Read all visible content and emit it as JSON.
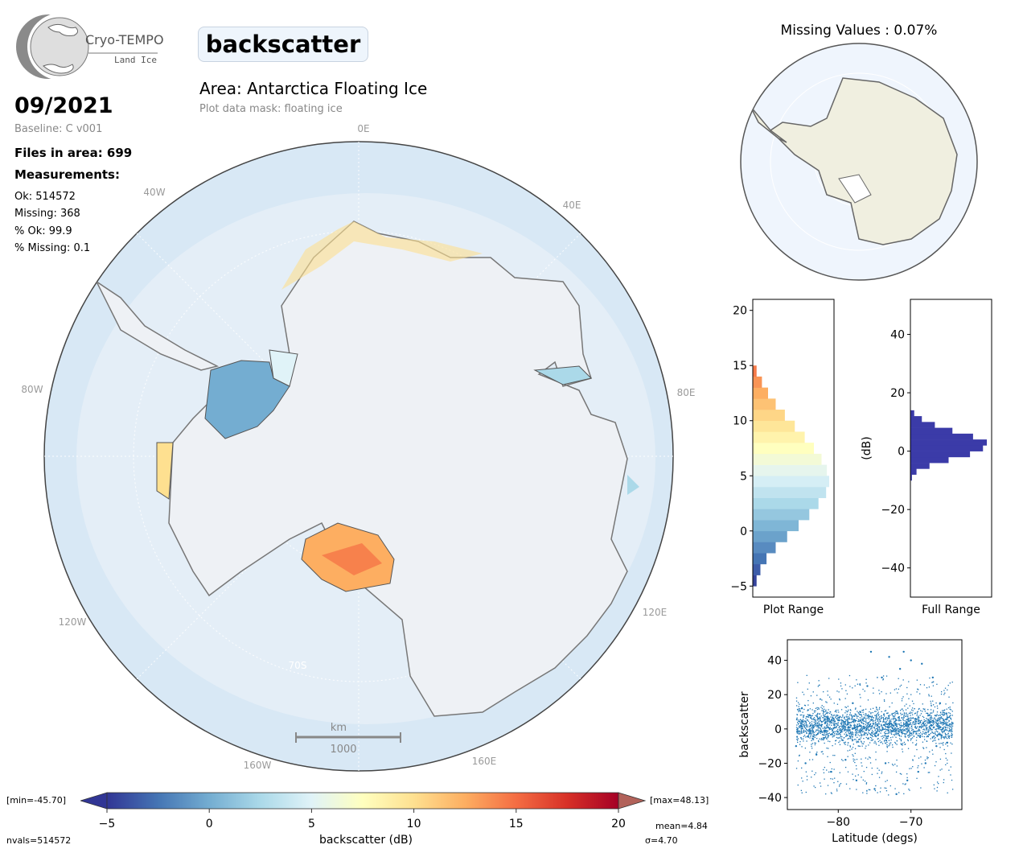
{
  "logo": {
    "name": "Cryo-TEMPO",
    "subtitle": "Land Ice"
  },
  "header": {
    "parameter": "backscatter",
    "area_title": "Area: Antarctica Floating Ice",
    "mask_note": "Plot data mask: floating ice",
    "date": "09/2021",
    "baseline": "Baseline: C v001",
    "files": "Files in area: 699",
    "measurements_label": "Measurements:",
    "ok": "Ok: 514572",
    "missing": "Missing: 368",
    "pct_ok": "% Ok: 99.9",
    "pct_missing": "% Missing: 0.1"
  },
  "map": {
    "lon_labels": [
      "0E",
      "40E",
      "80E",
      "120E",
      "160E",
      "160W",
      "120W",
      "80W",
      "40W"
    ],
    "lat_label": "70S",
    "scale_unit": "km",
    "scale_value": "1000"
  },
  "missing_map": {
    "title": "Missing Values : 0.07%"
  },
  "colorbar": {
    "min_label": "[min=-45.70]",
    "max_label": "[max=48.13]",
    "ticks": [
      "−5",
      "0",
      "5",
      "10",
      "15",
      "20"
    ],
    "label": "backscatter (dB)",
    "nvals": "nvals=514572",
    "mean": "mean=4.84",
    "sigma": "σ=4.70",
    "colors": [
      "#313695",
      "#4575b4",
      "#74add1",
      "#abd9e9",
      "#e0f3f8",
      "#ffffbf",
      "#fee090",
      "#fdae61",
      "#f46d43",
      "#d73027",
      "#a50026"
    ]
  },
  "chart_data": [
    {
      "type": "bar",
      "orientation": "horizontal",
      "xlabel": "Plot Range",
      "ylim": [
        -6,
        21
      ],
      "y_ticks": [
        "−5",
        "0",
        "5",
        "10",
        "15",
        "20"
      ],
      "bins": [
        -5,
        -4,
        -3,
        -2,
        -1,
        0,
        1,
        2,
        3,
        4,
        5,
        6,
        7,
        8,
        9,
        10,
        11,
        12,
        13,
        14
      ],
      "values": [
        0.05,
        0.1,
        0.18,
        0.3,
        0.45,
        0.6,
        0.74,
        0.86,
        0.96,
        1.0,
        0.97,
        0.9,
        0.8,
        0.68,
        0.55,
        0.42,
        0.3,
        0.2,
        0.12,
        0.05
      ]
    },
    {
      "type": "bar",
      "orientation": "horizontal",
      "xlabel": "Full Range",
      "ylabel": "(dB)",
      "ylim": [
        -50,
        52
      ],
      "y_ticks": [
        "−40",
        "−20",
        "0",
        "20",
        "40"
      ],
      "bins": [
        -10,
        -8,
        -6,
        -4,
        -2,
        0,
        2,
        4,
        6,
        8,
        10,
        12
      ],
      "values": [
        0.02,
        0.08,
        0.25,
        0.5,
        0.78,
        0.95,
        1.0,
        0.82,
        0.55,
        0.32,
        0.15,
        0.05
      ],
      "color": "#3b3ba8"
    },
    {
      "type": "scatter",
      "xlabel": "Latitude (degs)",
      "ylabel": "backscatter",
      "xlim": [
        -87,
        -63
      ],
      "ylim": [
        -47,
        52
      ],
      "x_ticks": [
        "−80",
        "−70"
      ],
      "y_ticks": [
        "−40",
        "−20",
        "0",
        "20",
        "40"
      ],
      "color": "#1f77b4",
      "x": [
        -85.8,
        -85,
        -84.5,
        -84,
        -83,
        -82,
        -81,
        -80,
        -79,
        -78,
        -77.5,
        -77,
        -76,
        -75.5,
        -75,
        -74,
        -73.5,
        -73,
        -72,
        -71.5,
        -71,
        -70.5,
        -70,
        -69,
        -68.5,
        -68,
        -67,
        -66.5,
        -66,
        -65.5,
        -65
      ],
      "y": [
        -10,
        12,
        -20,
        8,
        -15,
        10,
        -25,
        5,
        -18,
        15,
        -30,
        10,
        25,
        45,
        -35,
        30,
        -20,
        42,
        -38,
        35,
        45,
        -30,
        40,
        -25,
        38,
        -20,
        30,
        -10,
        15,
        5,
        -8
      ]
    }
  ]
}
